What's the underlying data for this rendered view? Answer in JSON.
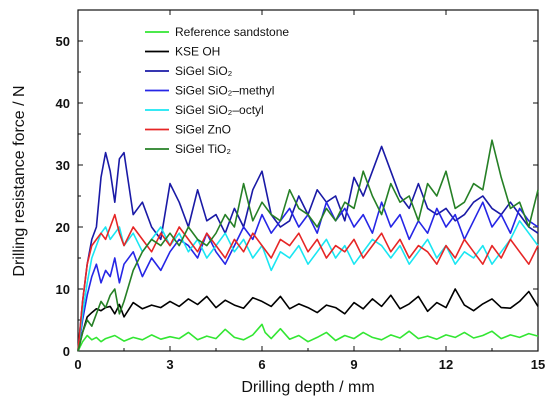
{
  "chart_data": {
    "type": "line",
    "title": "",
    "xlabel": "Drilling depth / mm",
    "ylabel": "Drilling resistance force / N",
    "xlim": [
      0,
      15
    ],
    "ylim": [
      0,
      55
    ],
    "xticks": [
      0,
      3,
      6,
      9,
      12,
      15
    ],
    "yticks": [
      0,
      10,
      20,
      30,
      40,
      50
    ],
    "grid": false,
    "legend_position": "top-left",
    "series": [
      {
        "name": "Reference sandstone",
        "color": "#33e633",
        "x": [
          0,
          0.15,
          0.3,
          0.45,
          0.6,
          0.75,
          0.9,
          1.2,
          1.5,
          1.8,
          2.1,
          2.4,
          2.7,
          3.0,
          3.3,
          3.6,
          3.9,
          4.2,
          4.5,
          4.8,
          5.1,
          5.4,
          5.7,
          6.0,
          6.1,
          6.3,
          6.6,
          6.9,
          7.2,
          7.5,
          7.8,
          8.1,
          8.4,
          8.7,
          9.0,
          9.3,
          9.6,
          9.9,
          10.2,
          10.5,
          10.8,
          11.1,
          11.4,
          11.7,
          12.0,
          12.3,
          12.6,
          12.9,
          13.2,
          13.5,
          13.8,
          14.1,
          14.4,
          14.7,
          15.0
        ],
        "values": [
          0,
          1.5,
          2.5,
          1.8,
          2.2,
          1.5,
          2.0,
          2.5,
          1.6,
          2.2,
          1.8,
          2.6,
          1.9,
          2.3,
          2.0,
          3.0,
          1.8,
          2.4,
          2.0,
          3.5,
          2.2,
          1.8,
          2.6,
          4.3,
          3.0,
          2.0,
          3.6,
          1.9,
          2.5,
          1.5,
          2.2,
          3.0,
          1.7,
          2.5,
          2.0,
          3.0,
          2.2,
          1.8,
          2.6,
          2.1,
          3.2,
          2.0,
          2.4,
          1.9,
          2.6,
          2.2,
          3.0,
          2.1,
          2.5,
          3.2,
          2.0,
          2.6,
          2.2,
          2.8,
          2.4
        ]
      },
      {
        "name": "KSE OH",
        "color": "#000000",
        "x": [
          0,
          0.15,
          0.3,
          0.45,
          0.6,
          0.75,
          0.9,
          1.05,
          1.2,
          1.35,
          1.5,
          1.8,
          2.1,
          2.4,
          2.7,
          3.0,
          3.3,
          3.6,
          3.9,
          4.2,
          4.5,
          4.8,
          5.1,
          5.4,
          5.7,
          6.0,
          6.3,
          6.6,
          6.9,
          7.2,
          7.5,
          7.8,
          8.1,
          8.4,
          8.7,
          9.0,
          9.3,
          9.6,
          9.9,
          10.2,
          10.5,
          10.8,
          11.1,
          11.4,
          11.7,
          12.0,
          12.3,
          12.6,
          12.9,
          13.2,
          13.5,
          13.8,
          14.1,
          14.4,
          14.7,
          15.0
        ],
        "values": [
          0,
          3.0,
          5.5,
          6.2,
          6.8,
          6.5,
          7.0,
          7.2,
          6.0,
          7.5,
          5.5,
          7.8,
          6.8,
          7.4,
          7.0,
          8.0,
          7.2,
          8.4,
          7.5,
          8.8,
          7.0,
          8.2,
          7.4,
          6.9,
          8.6,
          8.0,
          7.2,
          8.8,
          6.8,
          7.6,
          7.0,
          6.2,
          7.4,
          7.0,
          6.0,
          7.8,
          6.8,
          8.4,
          7.2,
          9.0,
          6.8,
          7.6,
          8.8,
          6.4,
          7.8,
          7.0,
          10.0,
          7.4,
          6.5,
          7.6,
          8.4,
          7.0,
          6.9,
          8.0,
          9.6,
          7.2
        ]
      },
      {
        "name": "SiGel SiO₂",
        "color": "#1a1aa6",
        "x": [
          0,
          0.15,
          0.3,
          0.45,
          0.6,
          0.75,
          0.9,
          1.05,
          1.2,
          1.35,
          1.5,
          1.8,
          2.1,
          2.4,
          2.7,
          3.0,
          3.3,
          3.6,
          3.9,
          4.2,
          4.5,
          4.8,
          5.1,
          5.4,
          5.7,
          6.0,
          6.3,
          6.6,
          6.9,
          7.2,
          7.5,
          7.8,
          8.1,
          8.4,
          8.7,
          9.0,
          9.3,
          9.6,
          9.9,
          10.2,
          10.5,
          10.8,
          11.1,
          11.4,
          11.7,
          12.0,
          12.3,
          12.6,
          12.9,
          13.2,
          13.5,
          13.8,
          14.1,
          14.4,
          14.7,
          15.0
        ],
        "values": [
          0,
          8,
          14,
          18,
          20,
          28,
          32,
          29,
          24,
          31,
          32,
          22,
          24,
          20,
          18,
          27,
          24,
          20,
          26,
          21,
          22,
          19,
          23,
          20,
          26,
          29,
          22,
          20,
          21,
          25,
          22,
          26,
          24,
          25,
          21,
          28,
          25,
          29,
          33,
          29,
          25,
          23,
          27,
          23,
          22,
          23,
          21,
          22,
          24,
          25,
          23,
          22,
          24,
          22,
          20,
          19
        ]
      },
      {
        "name": "SiGel SiO₂–methyl",
        "color": "#2626e6",
        "x": [
          0,
          0.15,
          0.3,
          0.45,
          0.6,
          0.75,
          0.9,
          1.05,
          1.2,
          1.35,
          1.5,
          1.8,
          2.1,
          2.4,
          2.7,
          3.0,
          3.3,
          3.6,
          3.9,
          4.2,
          4.5,
          4.8,
          5.1,
          5.4,
          5.7,
          6.0,
          6.3,
          6.6,
          6.9,
          7.2,
          7.5,
          7.8,
          8.1,
          8.4,
          8.7,
          9.0,
          9.3,
          9.6,
          9.9,
          10.2,
          10.5,
          10.8,
          11.1,
          11.4,
          11.7,
          12.0,
          12.3,
          12.6,
          12.9,
          13.2,
          13.5,
          13.8,
          14.1,
          14.4,
          14.7,
          15.0
        ],
        "values": [
          0,
          5,
          9,
          12,
          14,
          11,
          13,
          12,
          15,
          11,
          14,
          16,
          12,
          15,
          13,
          16,
          18,
          17,
          15,
          19,
          16,
          14,
          17,
          20,
          18,
          22,
          19,
          21,
          23,
          20,
          22,
          19,
          24,
          21,
          23,
          20,
          22,
          19,
          24,
          20,
          22,
          18,
          21,
          19,
          23,
          20,
          22,
          18,
          21,
          24,
          20,
          22,
          19,
          23,
          21,
          20
        ]
      },
      {
        "name": "SiGel SiO₂–octyl",
        "color": "#1ae6f2",
        "x": [
          0,
          0.15,
          0.3,
          0.45,
          0.6,
          0.75,
          0.9,
          1.05,
          1.2,
          1.35,
          1.5,
          1.8,
          2.1,
          2.4,
          2.7,
          3.0,
          3.3,
          3.6,
          3.9,
          4.2,
          4.5,
          4.8,
          5.1,
          5.4,
          5.7,
          6.0,
          6.3,
          6.6,
          6.9,
          7.2,
          7.5,
          7.8,
          8.1,
          8.4,
          8.7,
          9.0,
          9.3,
          9.6,
          9.9,
          10.2,
          10.5,
          10.8,
          11.1,
          11.4,
          11.7,
          12.0,
          12.3,
          12.6,
          12.9,
          13.2,
          13.5,
          13.8,
          14.1,
          14.4,
          14.7,
          15.0
        ],
        "values": [
          0,
          6,
          11,
          15,
          17,
          19,
          20,
          18,
          19,
          20,
          17,
          19,
          16,
          18,
          20,
          17,
          19,
          16,
          18,
          15,
          17,
          19,
          16,
          18,
          15,
          17,
          13,
          16,
          15,
          17,
          14,
          16,
          18,
          15,
          17,
          14,
          16,
          18,
          17,
          15,
          17,
          14,
          16,
          18,
          15,
          17,
          14,
          16,
          15,
          17,
          14,
          16,
          18,
          21,
          19,
          17
        ]
      },
      {
        "name": "SiGel ZnO",
        "color": "#e62626",
        "x": [
          0,
          0.15,
          0.3,
          0.45,
          0.6,
          0.75,
          0.9,
          1.05,
          1.2,
          1.35,
          1.5,
          1.8,
          2.1,
          2.4,
          2.7,
          3.0,
          3.3,
          3.6,
          3.9,
          4.2,
          4.5,
          4.8,
          5.1,
          5.4,
          5.7,
          6.0,
          6.3,
          6.6,
          6.9,
          7.2,
          7.5,
          7.8,
          8.1,
          8.4,
          8.7,
          9.0,
          9.3,
          9.6,
          9.9,
          10.2,
          10.5,
          10.8,
          11.1,
          11.4,
          11.7,
          12.0,
          12.3,
          12.6,
          12.9,
          13.2,
          13.5,
          13.8,
          14.1,
          14.4,
          14.7,
          15.0
        ],
        "values": [
          0,
          8,
          14,
          17,
          18,
          19,
          18,
          20,
          22,
          19,
          17,
          20,
          18,
          16,
          19,
          17,
          20,
          18,
          16,
          19,
          17,
          15,
          18,
          16,
          19,
          17,
          15,
          18,
          17,
          19,
          16,
          18,
          15,
          17,
          16,
          18,
          15,
          17,
          19,
          16,
          18,
          15,
          17,
          16,
          14,
          17,
          15,
          18,
          16,
          14,
          17,
          15,
          18,
          16,
          14,
          17
        ]
      },
      {
        "name": "SiGel TiO₂",
        "color": "#268026",
        "x": [
          0,
          0.15,
          0.3,
          0.45,
          0.6,
          0.75,
          0.9,
          1.05,
          1.2,
          1.35,
          1.5,
          1.8,
          2.1,
          2.4,
          2.7,
          3.0,
          3.3,
          3.6,
          3.9,
          4.2,
          4.5,
          4.8,
          5.1,
          5.4,
          5.7,
          6.0,
          6.3,
          6.6,
          6.9,
          7.2,
          7.5,
          7.8,
          8.1,
          8.4,
          8.7,
          9.0,
          9.3,
          9.6,
          9.9,
          10.2,
          10.5,
          10.8,
          11.1,
          11.4,
          11.7,
          12.0,
          12.3,
          12.6,
          12.9,
          13.2,
          13.5,
          13.8,
          14.1,
          14.4,
          14.7,
          15.0
        ],
        "values": [
          0,
          3,
          5,
          4,
          6,
          8,
          7,
          9,
          10,
          6,
          8,
          13,
          16,
          18,
          17,
          19,
          17,
          20,
          18,
          17,
          19,
          22,
          20,
          27,
          21,
          24,
          22,
          21,
          26,
          23,
          22,
          20,
          23,
          21,
          24,
          23,
          29,
          25,
          22,
          27,
          24,
          25,
          21,
          27,
          25,
          29,
          23,
          24,
          27,
          26,
          34,
          28,
          23,
          24,
          20,
          26
        ]
      }
    ]
  }
}
